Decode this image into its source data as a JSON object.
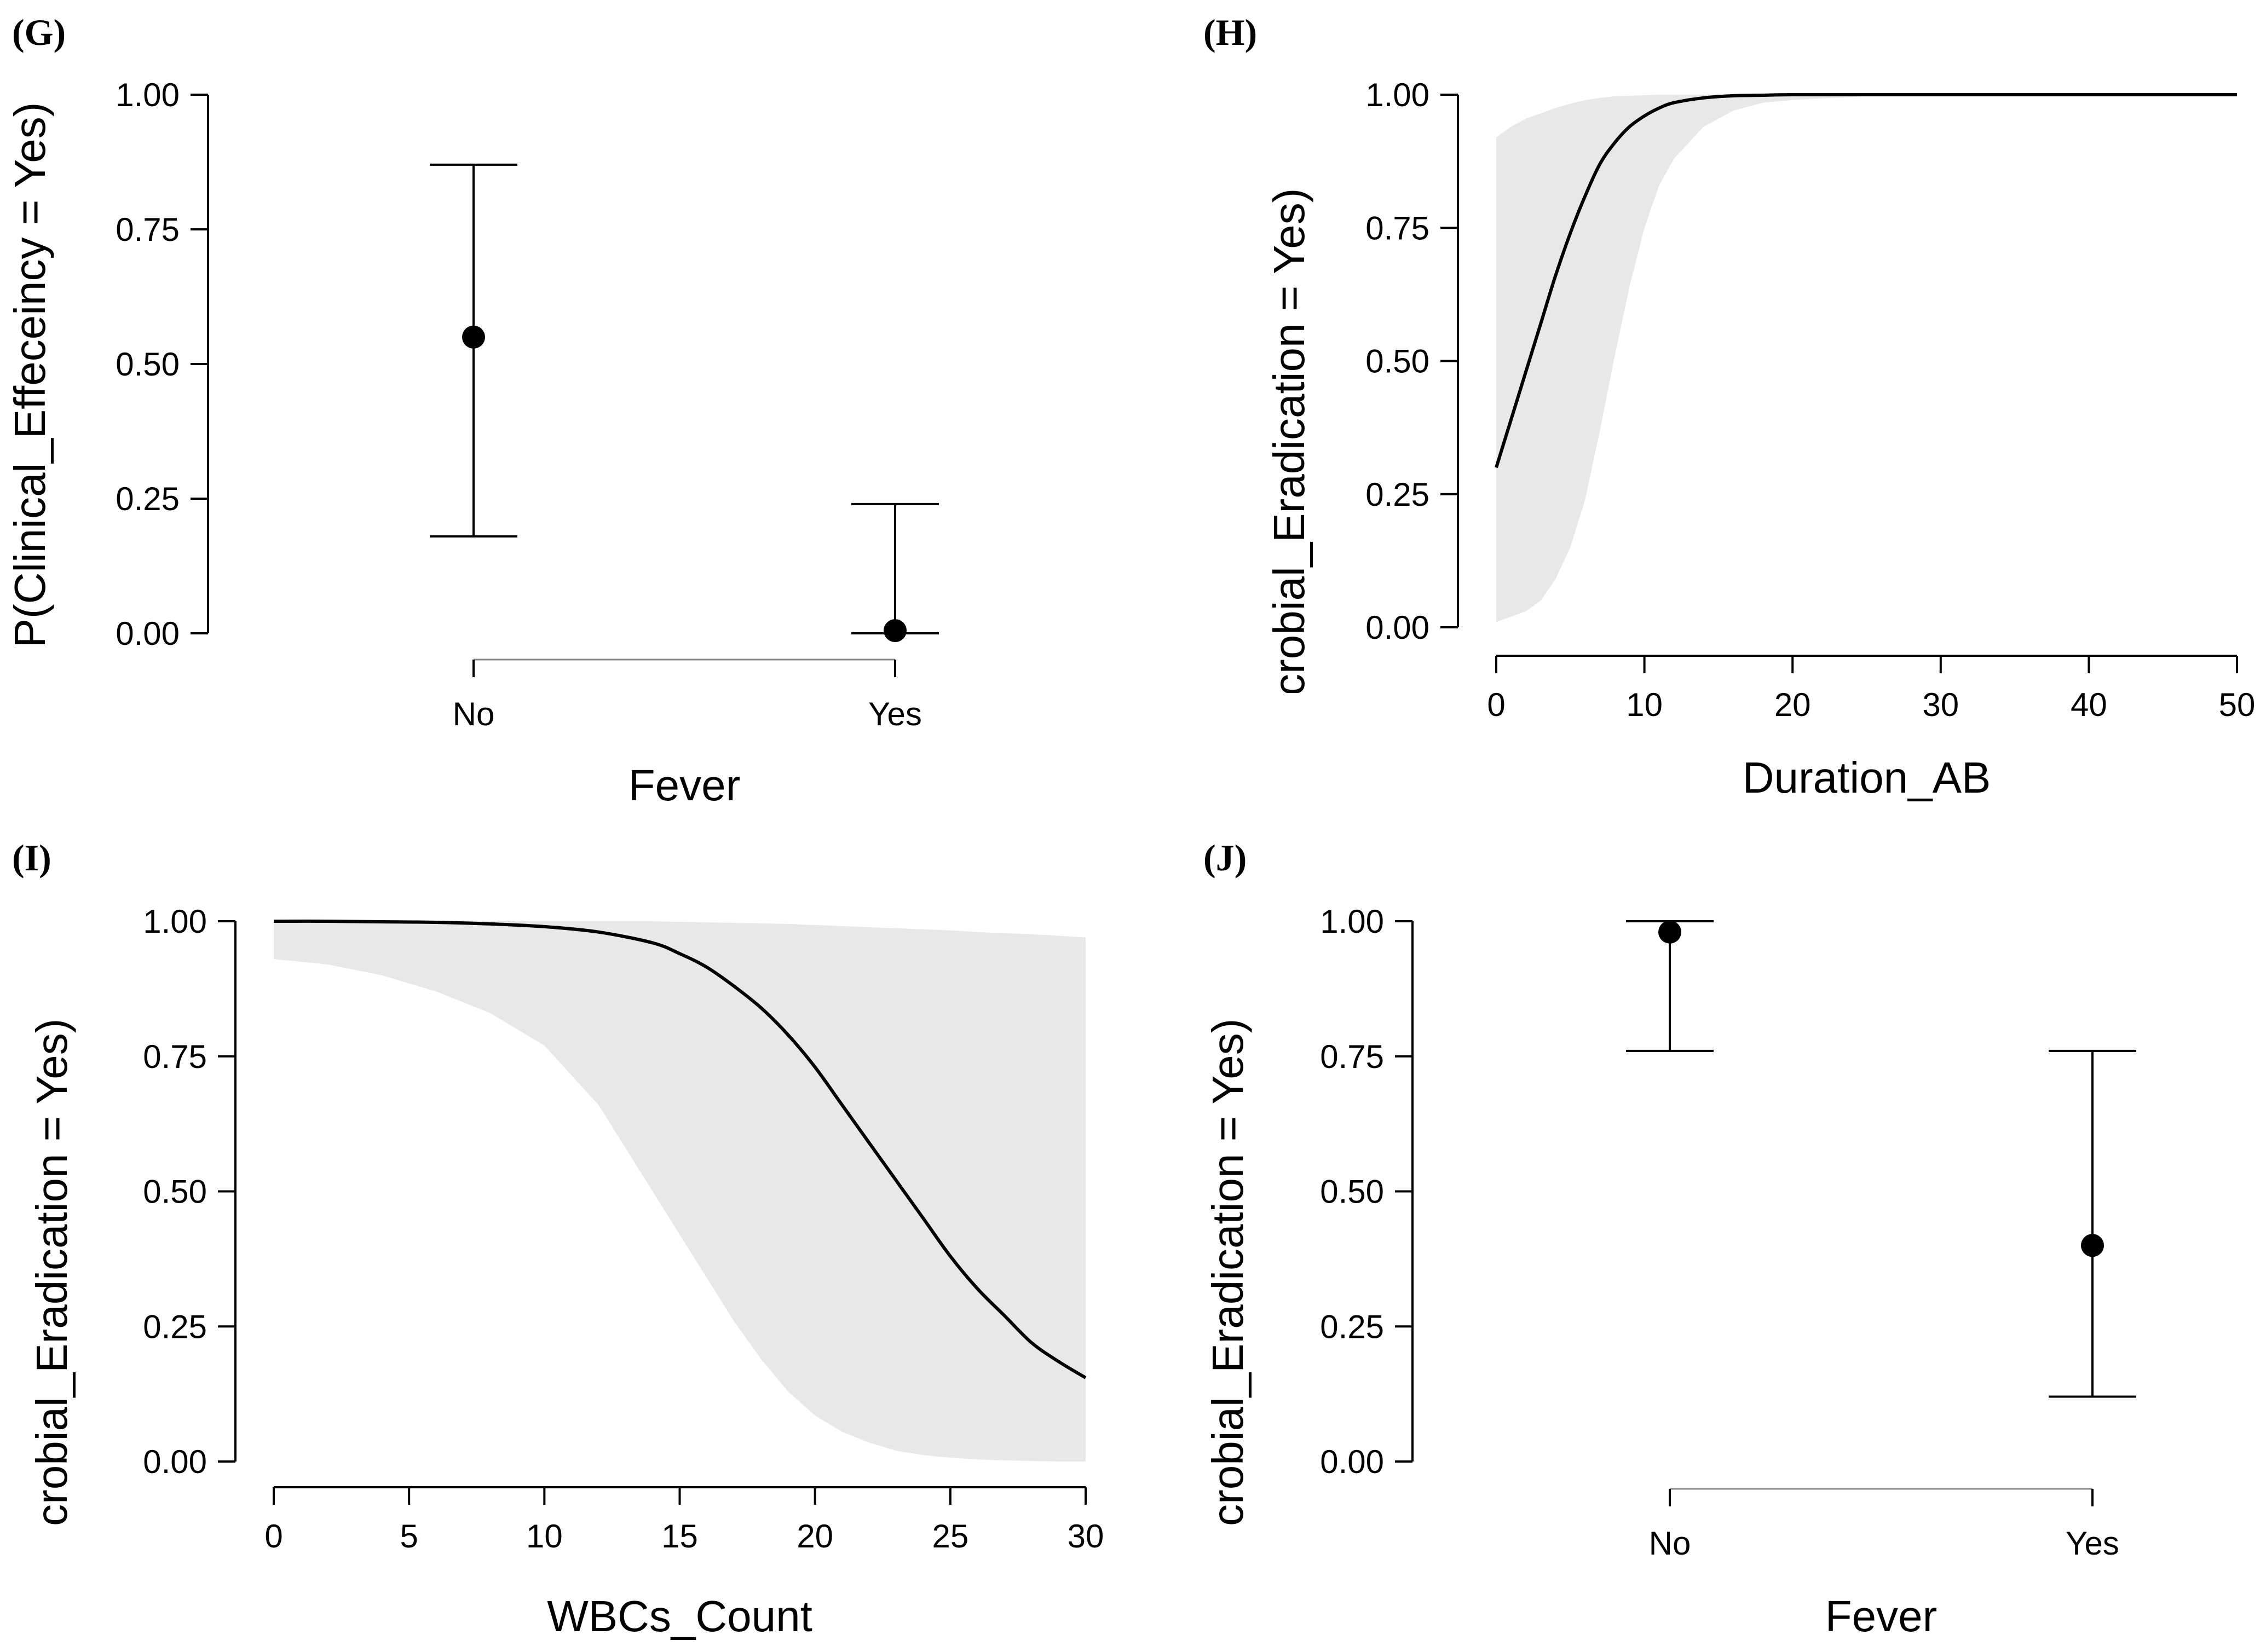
{
  "chart_data": [
    {
      "panel": "(G)",
      "type": "scatter",
      "xlabel": "Fever",
      "ylabel": "P(Clinical_Effeceincy = Yes)",
      "ylim": [
        0,
        1
      ],
      "yticks": [
        "0.00",
        "0.25",
        "0.50",
        "0.75",
        "1.00"
      ],
      "categories": [
        "No",
        "Yes"
      ],
      "points": [
        {
          "category": "No",
          "estimate": 0.55,
          "lower": 0.18,
          "upper": 0.87
        },
        {
          "category": "Yes",
          "estimate": 0.005,
          "lower": 0.0,
          "upper": 0.24
        }
      ]
    },
    {
      "panel": "(H)",
      "type": "line",
      "xlabel": "Duration_AB",
      "ylabel": "P(Microbial_Eradication = Yes)",
      "xlim": [
        0,
        50
      ],
      "ylim": [
        0,
        1
      ],
      "xticks": [
        "0",
        "10",
        "20",
        "30",
        "40",
        "50"
      ],
      "yticks": [
        "0.00",
        "0.25",
        "0.50",
        "0.75",
        "1.00"
      ],
      "band": "95% credible interval",
      "x": [
        0,
        1,
        2,
        3,
        4,
        5,
        6,
        7,
        8,
        9,
        10,
        11,
        12,
        14,
        16,
        18,
        20,
        25,
        30,
        35,
        40,
        45,
        50
      ],
      "y": [
        0.3,
        0.39,
        0.48,
        0.57,
        0.66,
        0.74,
        0.81,
        0.87,
        0.91,
        0.94,
        0.96,
        0.975,
        0.985,
        0.994,
        0.998,
        0.999,
        1.0,
        1.0,
        1.0,
        1.0,
        1.0,
        1.0,
        1.0
      ],
      "lower": [
        0.01,
        0.02,
        0.03,
        0.05,
        0.09,
        0.15,
        0.24,
        0.37,
        0.51,
        0.64,
        0.75,
        0.83,
        0.88,
        0.94,
        0.97,
        0.985,
        0.99,
        0.997,
        0.999,
        1.0,
        1.0,
        1.0,
        1.0
      ],
      "upper": [
        0.92,
        0.94,
        0.955,
        0.965,
        0.975,
        0.983,
        0.99,
        0.994,
        0.997,
        0.998,
        0.999,
        1.0,
        1.0,
        1.0,
        1.0,
        1.0,
        1.0,
        1.0,
        1.0,
        1.0,
        1.0,
        1.0,
        1.0
      ]
    },
    {
      "panel": "(I)",
      "type": "line",
      "xlabel": "WBCs_Count",
      "ylabel": "P(Microbial_Eradication = Yes)",
      "xlim": [
        0,
        30
      ],
      "ylim": [
        0,
        1
      ],
      "xticks": [
        "0",
        "5",
        "10",
        "15",
        "20",
        "25",
        "30"
      ],
      "yticks": [
        "0.00",
        "0.25",
        "0.50",
        "0.75",
        "1.00"
      ],
      "band": "95% credible interval",
      "x": [
        0,
        2,
        4,
        6,
        8,
        10,
        12,
        14,
        15,
        16,
        17,
        18,
        19,
        20,
        21,
        22,
        23,
        24,
        25,
        26,
        27,
        28,
        29,
        30
      ],
      "y": [
        1.0,
        1.0,
        0.999,
        0.998,
        0.995,
        0.99,
        0.98,
        0.96,
        0.94,
        0.915,
        0.88,
        0.84,
        0.79,
        0.73,
        0.66,
        0.59,
        0.52,
        0.45,
        0.38,
        0.32,
        0.27,
        0.22,
        0.185,
        0.155
      ],
      "lower": [
        0.93,
        0.92,
        0.9,
        0.87,
        0.83,
        0.77,
        0.66,
        0.5,
        0.42,
        0.34,
        0.26,
        0.19,
        0.13,
        0.085,
        0.055,
        0.035,
        0.02,
        0.012,
        0.007,
        0.004,
        0.002,
        0.001,
        0.0,
        0.0
      ],
      "upper": [
        1.0,
        1.0,
        1.0,
        1.0,
        1.0,
        1.0,
        1.0,
        1.0,
        0.999,
        0.998,
        0.997,
        0.996,
        0.995,
        0.993,
        0.991,
        0.989,
        0.987,
        0.985,
        0.983,
        0.98,
        0.978,
        0.976,
        0.973,
        0.97
      ]
    },
    {
      "panel": "(J)",
      "type": "scatter",
      "xlabel": "Fever",
      "ylabel": "P(Microbial_Eradication = Yes)",
      "ylim": [
        0,
        1
      ],
      "yticks": [
        "0.00",
        "0.25",
        "0.50",
        "0.75",
        "1.00"
      ],
      "categories": [
        "No",
        "Yes"
      ],
      "points": [
        {
          "category": "No",
          "estimate": 0.98,
          "lower": 0.76,
          "upper": 1.0
        },
        {
          "category": "Yes",
          "estimate": 0.4,
          "lower": 0.12,
          "upper": 0.76
        }
      ]
    }
  ],
  "colors": {
    "band": "#e8e8e8",
    "line": "#000000",
    "category_axis": "#8a8a8a"
  }
}
